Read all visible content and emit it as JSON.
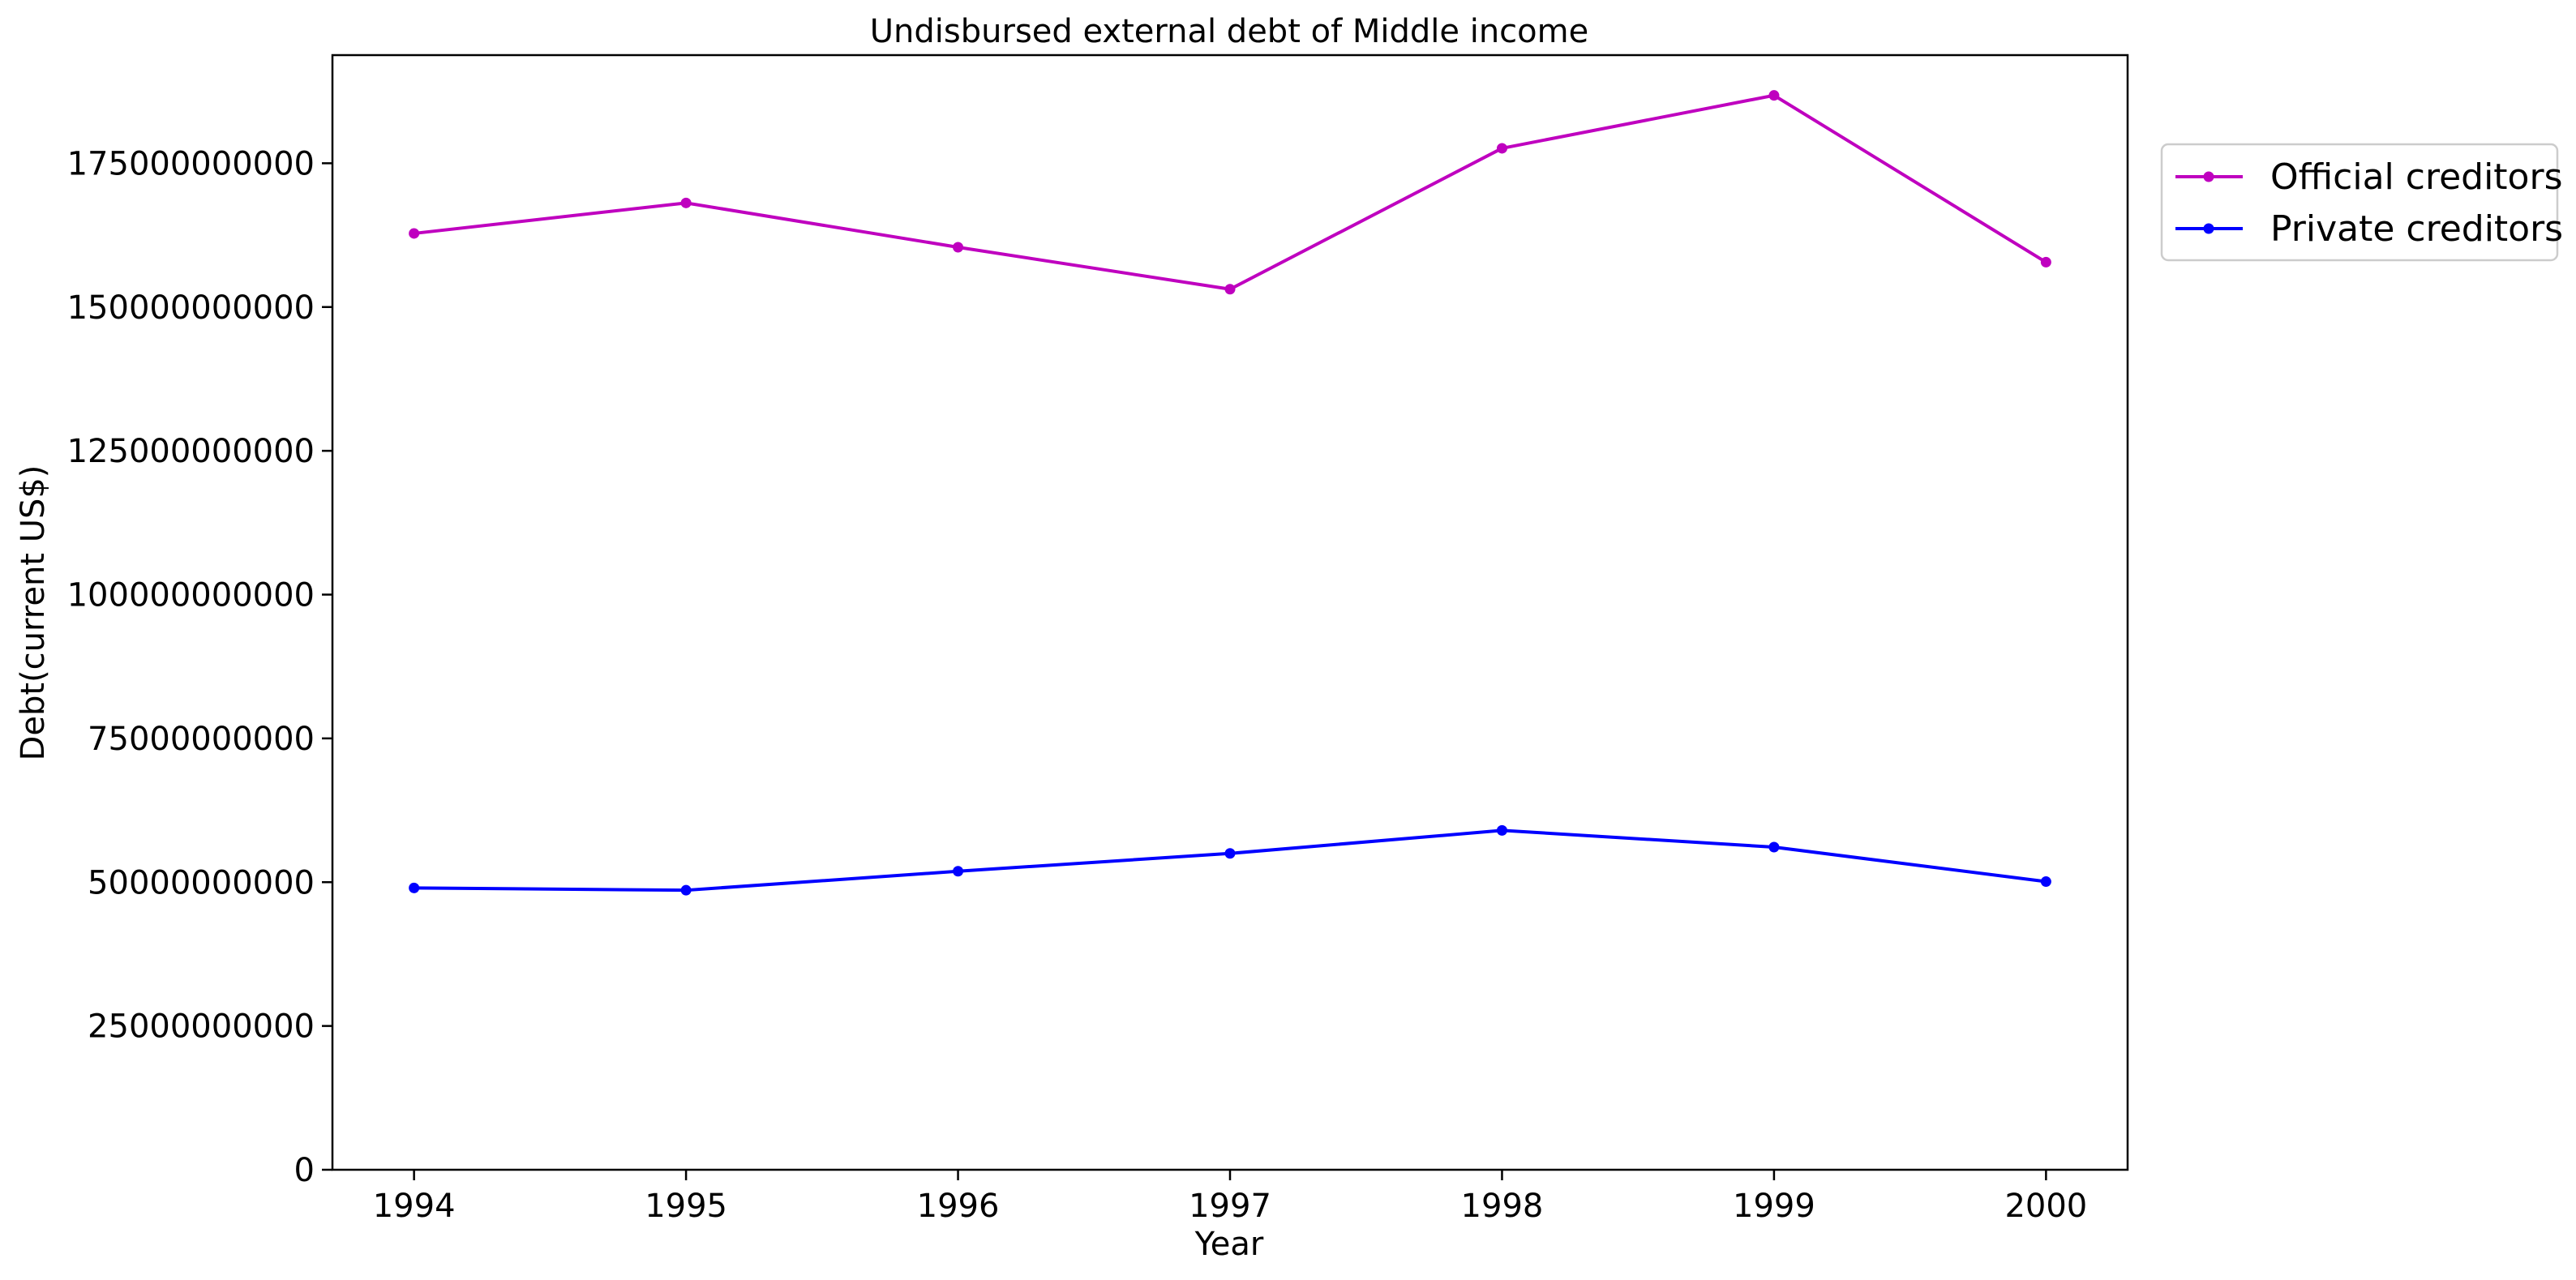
{
  "chart_data": {
    "type": "line",
    "title": "Undisbursed external debt of Middle income",
    "xlabel": "Year",
    "ylabel": "Debt(current US$)",
    "x": [
      1994,
      1995,
      1996,
      1997,
      1998,
      1999,
      2000
    ],
    "x_tick_labels": [
      "1994",
      "1995",
      "1996",
      "1997",
      "1998",
      "1999",
      "2000"
    ],
    "xlim": [
      1993.7,
      2000.3
    ],
    "ylim": [
      0,
      193800000000
    ],
    "y_ticks": [
      0,
      25000000000,
      50000000000,
      75000000000,
      100000000000,
      125000000000,
      150000000000,
      175000000000
    ],
    "y_tick_labels": [
      "0",
      "25000000000",
      "50000000000",
      "75000000000",
      "100000000000",
      "125000000000",
      "150000000000",
      "175000000000"
    ],
    "grid": false,
    "legend_position": "outside upper right",
    "series": [
      {
        "name": "Official creditors",
        "color": "#bf00bf",
        "marker": "dot",
        "values": [
          162800000000,
          168100000000,
          160400000000,
          153100000000,
          177600000000,
          186800000000,
          157800000000
        ]
      },
      {
        "name": "Private creditors",
        "color": "#0000ff",
        "marker": "dot",
        "values": [
          49000000000,
          48600000000,
          51900000000,
          55000000000,
          59000000000,
          56100000000,
          50100000000
        ]
      }
    ]
  }
}
